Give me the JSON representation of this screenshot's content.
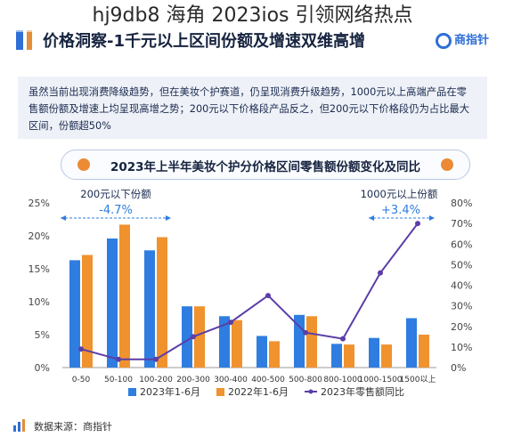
{
  "overlay_title": "hj9db8 海角 2023ios 引领网络热点",
  "header": {
    "title": "价格洞察-1千元以上区间份额及增速双维高增",
    "logo": "商指针"
  },
  "summary": "虽然当前出现消费降级趋势，但在美妆个护赛道，仍呈现消费升级趋势，1000元以上高端产品在零售额份额及增速上均呈现高增之势；200元以下价格段产品反之，但200元以下价格段仍为占比最大区间，份额超50%",
  "chart_data": {
    "type": "bar",
    "title": "2023年上半年美妆个护分价格区间零售额份额变化及同比",
    "categories": [
      "0-50",
      "50-100",
      "100-200",
      "200-300",
      "300-400",
      "400-500",
      "500-800",
      "800-1000",
      "1000-1500",
      "1500以上"
    ],
    "series": [
      {
        "name": "2023年1-6月",
        "type": "bar",
        "axis": "left",
        "color": "#2f7de0",
        "values": [
          16.3,
          19.6,
          17.8,
          9.3,
          7.8,
          4.8,
          8.0,
          3.6,
          4.5,
          7.5
        ]
      },
      {
        "name": "2022年1-6月",
        "type": "bar",
        "axis": "left",
        "color": "#f0922e",
        "values": [
          17.1,
          21.7,
          19.8,
          9.3,
          7.2,
          4.0,
          7.8,
          3.5,
          3.5,
          5.0
        ]
      },
      {
        "name": "2023年零售额同比",
        "type": "line",
        "axis": "right",
        "color": "#5b3ea8",
        "values": [
          9,
          4,
          4,
          15,
          22,
          35,
          17,
          14,
          46,
          70
        ]
      }
    ],
    "left_axis": {
      "ticks": [
        "0%",
        "5%",
        "10%",
        "15%",
        "20%",
        "25%"
      ],
      "ylim": [
        0,
        25
      ]
    },
    "right_axis": {
      "ticks": [
        "0%",
        "10%",
        "20%",
        "30%",
        "40%",
        "50%",
        "60%",
        "70%",
        "80%"
      ],
      "ylim": [
        0,
        80
      ]
    },
    "annotations": [
      {
        "label": "200元以下份额",
        "value": "-4.7%",
        "color": "#2f7de0"
      },
      {
        "label": "1000元以上份额",
        "value": "+3.4%",
        "color": "#2f7de0"
      }
    ],
    "legend": "bottom",
    "grid": false
  },
  "footer": {
    "source": "数据来源：商指针"
  }
}
